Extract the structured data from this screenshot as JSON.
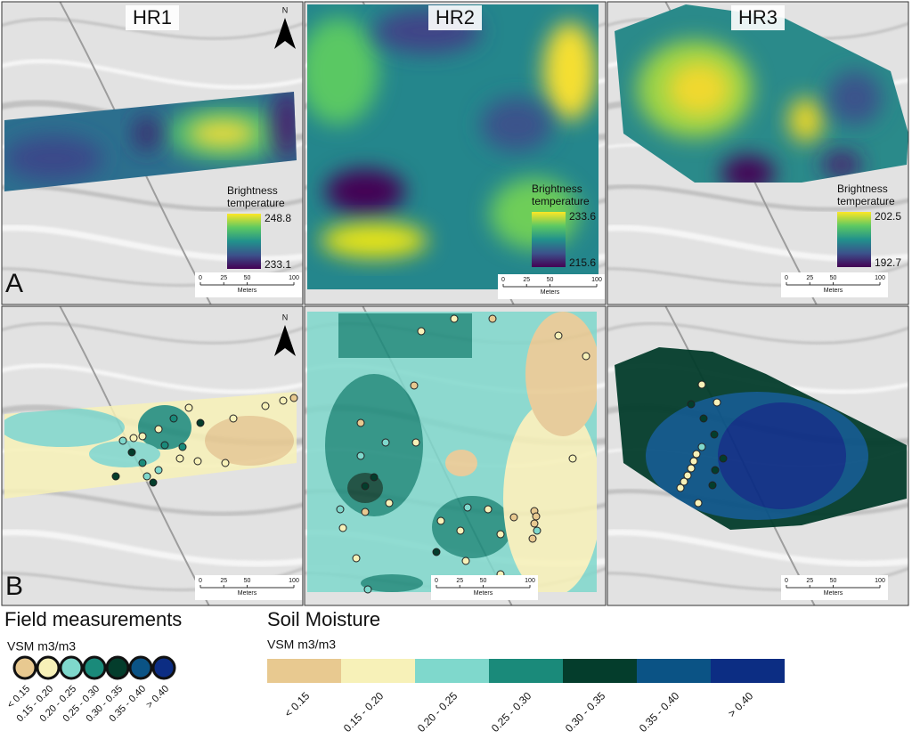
{
  "panels": [
    {
      "title": "HR1"
    },
    {
      "title": "HR2"
    },
    {
      "title": "HR3"
    }
  ],
  "north_label": "N",
  "row_labels": [
    "A",
    "B"
  ],
  "brightness_legend": {
    "title": "Brightness temperature",
    "ranges": [
      {
        "max": 248.8,
        "min": 233.1
      },
      {
        "max": 233.6,
        "min": 215.6
      },
      {
        "max": 202.5,
        "min": 192.7
      }
    ]
  },
  "scale_bar": {
    "ticks": [
      0,
      25,
      50,
      100
    ],
    "unit": "Meters"
  },
  "field_measurements": {
    "title": "Field measurements",
    "unit": "VSM m3/m3"
  },
  "soil_moisture": {
    "title": "Soil Moisture",
    "unit": "VSM m3/m3"
  },
  "classes": [
    {
      "label": "< 0.15",
      "color": "#e8c990"
    },
    {
      "label": "0.15 - 0.20",
      "color": "#f7f1b8"
    },
    {
      "label": "0.20 - 0.25",
      "color": "#7fd8cc"
    },
    {
      "label": "0.25 - 0.30",
      "color": "#1a8a7a"
    },
    {
      "label": "0.30 - 0.35",
      "color": "#043d2c"
    },
    {
      "label": "0.35 - 0.40",
      "color": "#0b5385"
    },
    {
      "label": "> 0.40",
      "color": "#0c2d83"
    }
  ]
}
